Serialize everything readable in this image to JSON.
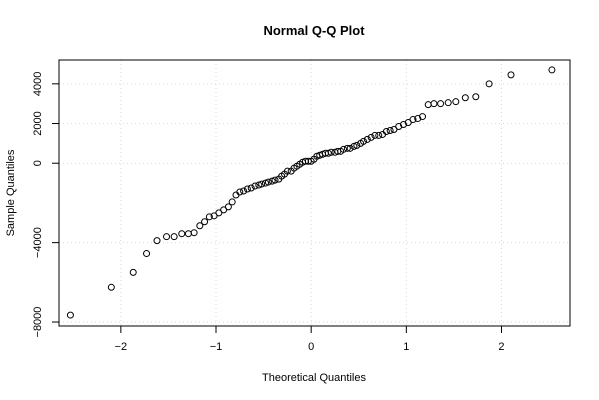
{
  "chart_data": {
    "type": "scatter",
    "title": "Normal Q-Q Plot",
    "xlabel": "Theoretical Quantiles",
    "ylabel": "Sample Quantiles",
    "xlim": [
      -2.65,
      2.72
    ],
    "ylim": [
      -8200,
      5200
    ],
    "xticks": [
      -2,
      -1,
      0,
      1,
      2
    ],
    "yticks": [
      -8000,
      -4000,
      0,
      2000,
      4000
    ],
    "ytick_labels": [
      "−8000",
      "−4000",
      "0",
      "2000",
      "4000"
    ],
    "xtick_labels": [
      "−2",
      "−1",
      "0",
      "1",
      "2"
    ],
    "grid": true,
    "grid_color": "#d9d9d9",
    "points": [
      [
        -2.53,
        -7650
      ],
      [
        -2.1,
        -6250
      ],
      [
        -1.87,
        -5500
      ],
      [
        -1.73,
        -4550
      ],
      [
        -1.62,
        -3900
      ],
      [
        -1.52,
        -3700
      ],
      [
        -1.44,
        -3700
      ],
      [
        -1.36,
        -3550
      ],
      [
        -1.29,
        -3550
      ],
      [
        -1.23,
        -3500
      ],
      [
        -1.17,
        -3150
      ],
      [
        -1.12,
        -2950
      ],
      [
        -1.07,
        -2700
      ],
      [
        -1.02,
        -2650
      ],
      [
        -0.97,
        -2500
      ],
      [
        -0.92,
        -2350
      ],
      [
        -0.87,
        -2200
      ],
      [
        -0.83,
        -1950
      ],
      [
        -0.79,
        -1600
      ],
      [
        -0.75,
        -1450
      ],
      [
        -0.71,
        -1400
      ],
      [
        -0.67,
        -1300
      ],
      [
        -0.63,
        -1250
      ],
      [
        -0.59,
        -1150
      ],
      [
        -0.55,
        -1100
      ],
      [
        -0.52,
        -1050
      ],
      [
        -0.48,
        -1000
      ],
      [
        -0.45,
        -950
      ],
      [
        -0.41,
        -900
      ],
      [
        -0.38,
        -850
      ],
      [
        -0.34,
        -800
      ],
      [
        -0.31,
        -650
      ],
      [
        -0.28,
        -550
      ],
      [
        -0.25,
        -400
      ],
      [
        -0.21,
        -400
      ],
      [
        -0.18,
        -250
      ],
      [
        -0.15,
        -150
      ],
      [
        -0.12,
        -50
      ],
      [
        -0.09,
        50
      ],
      [
        -0.06,
        100
      ],
      [
        -0.03,
        100
      ],
      [
        0.0,
        100
      ],
      [
        0.03,
        200
      ],
      [
        0.06,
        350
      ],
      [
        0.09,
        400
      ],
      [
        0.12,
        450
      ],
      [
        0.15,
        500
      ],
      [
        0.18,
        500
      ],
      [
        0.21,
        550
      ],
      [
        0.25,
        550
      ],
      [
        0.28,
        600
      ],
      [
        0.31,
        600
      ],
      [
        0.34,
        700
      ],
      [
        0.38,
        750
      ],
      [
        0.41,
        750
      ],
      [
        0.45,
        850
      ],
      [
        0.48,
        900
      ],
      [
        0.52,
        1000
      ],
      [
        0.55,
        1100
      ],
      [
        0.59,
        1200
      ],
      [
        0.63,
        1300
      ],
      [
        0.67,
        1400
      ],
      [
        0.71,
        1400
      ],
      [
        0.75,
        1450
      ],
      [
        0.79,
        1600
      ],
      [
        0.83,
        1650
      ],
      [
        0.87,
        1700
      ],
      [
        0.92,
        1850
      ],
      [
        0.97,
        1950
      ],
      [
        1.02,
        2050
      ],
      [
        1.07,
        2200
      ],
      [
        1.12,
        2250
      ],
      [
        1.17,
        2350
      ],
      [
        1.23,
        2950
      ],
      [
        1.29,
        3000
      ],
      [
        1.36,
        3000
      ],
      [
        1.44,
        3050
      ],
      [
        1.52,
        3100
      ],
      [
        1.62,
        3300
      ],
      [
        1.73,
        3350
      ],
      [
        1.87,
        4000
      ],
      [
        2.1,
        4450
      ],
      [
        2.53,
        4700
      ]
    ]
  }
}
